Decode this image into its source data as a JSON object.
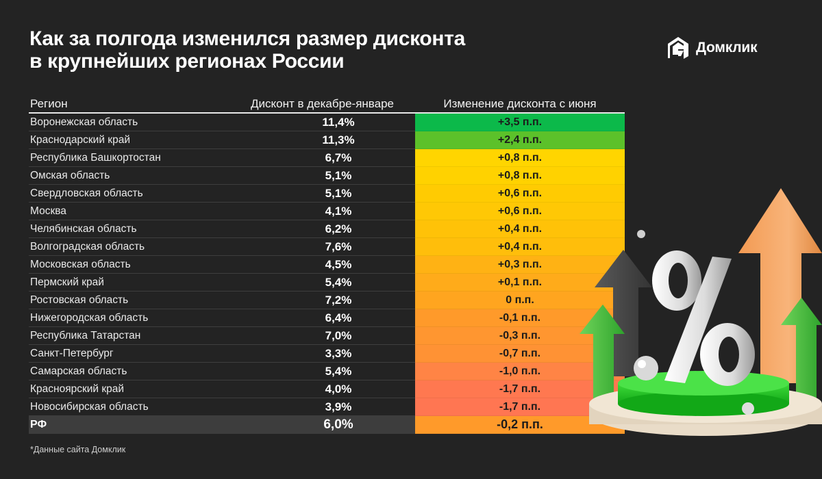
{
  "title_lines": [
    "Как за полгода изменился размер дисконта",
    "в крупнейших регионах России"
  ],
  "logo": {
    "text": "Домклик",
    "icon": "domclick-house-icon"
  },
  "table": {
    "headers": [
      "Регион",
      "Дисконт в декабре-январе",
      "Изменение дисконта с июня"
    ],
    "rows": [
      {
        "region": "Воронежская область",
        "discount": "11,4%",
        "change": "+3,5 п.п.",
        "color": "#0cb94a"
      },
      {
        "region": "Краснодарский край",
        "discount": "11,3%",
        "change": "+2,4 п.п.",
        "color": "#5cc12a"
      },
      {
        "region": "Республика Башкортостан",
        "discount": "6,7%",
        "change": "+0,8 п.п.",
        "color": "#ffd500"
      },
      {
        "region": "Омская область",
        "discount": "5,1%",
        "change": "+0,8 п.п.",
        "color": "#ffd200"
      },
      {
        "region": "Свердловская область",
        "discount": "5,1%",
        "change": "+0,6 п.п.",
        "color": "#ffcb02"
      },
      {
        "region": "Москва",
        "discount": "4,1%",
        "change": "+0,6 п.п.",
        "color": "#ffc805"
      },
      {
        "region": "Челябинская область",
        "discount": "6,2%",
        "change": "+0,4 п.п.",
        "color": "#ffc208"
      },
      {
        "region": "Волгоградская область",
        "discount": "7,6%",
        "change": "+0,4 п.п.",
        "color": "#ffbe0b"
      },
      {
        "region": "Московская область",
        "discount": "4,5%",
        "change": "+0,3 п.п.",
        "color": "#ffb214"
      },
      {
        "region": "Пермский край",
        "discount": "5,4%",
        "change": "+0,1 п.п.",
        "color": "#ffab1a"
      },
      {
        "region": "Ростовская область",
        "discount": "7,2%",
        "change": "0 п.п.",
        "color": "#ffa51f"
      },
      {
        "region": "Нижегородская область",
        "discount": "6,4%",
        "change": "-0,1 п.п.",
        "color": "#ff9a2a"
      },
      {
        "region": "Республика Татарстан",
        "discount": "7,0%",
        "change": "-0,3 п.п.",
        "color": "#ff9630"
      },
      {
        "region": "Санкт-Петербург",
        "discount": "3,3%",
        "change": "-0,7 п.п.",
        "color": "#ff9234"
      },
      {
        "region": "Самарская область",
        "discount": "5,4%",
        "change": "-1,0 п.п.",
        "color": "#ff8445"
      },
      {
        "region": "Красноярский край",
        "discount": "4,0%",
        "change": "-1,7 п.п.",
        "color": "#ff7850"
      },
      {
        "region": "Новосибирская область",
        "discount": "3,9%",
        "change": "-1,7 п.п.",
        "color": "#ff7652"
      }
    ],
    "total": {
      "region": "РФ",
      "discount": "6,0%",
      "change": "-0,2 п.п.",
      "color": "#ff9a2a"
    }
  },
  "footnote": "*Данные сайта Домклик",
  "colors": {
    "background": "#232323",
    "positive_strong": "#0cb94a",
    "neutral": "#ffd500",
    "negative": "#ff7652"
  },
  "chart_data": {
    "type": "table",
    "title": "Как за полгода изменился размер дисконта в крупнейших регионах России",
    "columns": [
      "Регион",
      "Дисконт в декабре-январе (%)",
      "Изменение дисконта с июня (п.п.)"
    ],
    "categories": [
      "Воронежская область",
      "Краснодарский край",
      "Республика Башкортостан",
      "Омская область",
      "Свердловская область",
      "Москва",
      "Челябинская область",
      "Волгоградская область",
      "Московская область",
      "Пермский край",
      "Ростовская область",
      "Нижегородская область",
      "Республика Татарстан",
      "Санкт-Петербург",
      "Самарская область",
      "Красноярский край",
      "Новосибирская область",
      "РФ"
    ],
    "series": [
      {
        "name": "Дисконт в декабре-январе",
        "values": [
          11.4,
          11.3,
          6.7,
          5.1,
          5.1,
          4.1,
          6.2,
          7.6,
          4.5,
          5.4,
          7.2,
          6.4,
          7.0,
          3.3,
          5.4,
          4.0,
          3.9,
          6.0
        ]
      },
      {
        "name": "Изменение дисконта с июня",
        "values": [
          3.5,
          2.4,
          0.8,
          0.8,
          0.6,
          0.6,
          0.4,
          0.4,
          0.3,
          0.1,
          0.0,
          -0.1,
          -0.3,
          -0.7,
          -1.0,
          -1.7,
          -1.7,
          -0.2
        ]
      }
    ],
    "footnote": "*Данные сайта Домклик"
  }
}
